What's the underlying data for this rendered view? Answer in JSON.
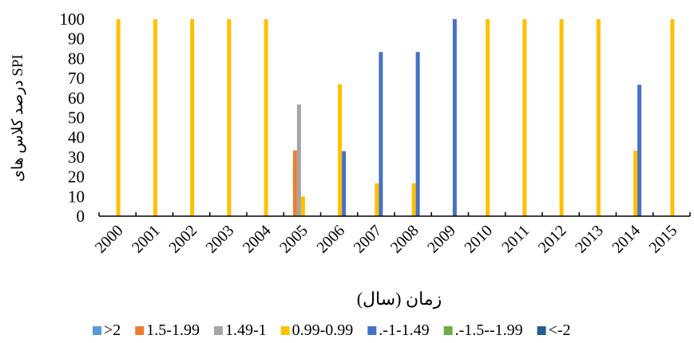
{
  "chart_data": {
    "type": "bar",
    "xlabel": "زمان (سال)",
    "ylabel": "درصد کلاس های SPI",
    "ylim": [
      0,
      100
    ],
    "yticks": [
      0,
      10,
      20,
      30,
      40,
      50,
      60,
      70,
      80,
      90,
      100
    ],
    "grid": false,
    "legend_position": "bottom",
    "categories": [
      "2000",
      "2001",
      "2002",
      "2003",
      "2004",
      "2005",
      "2006",
      "2007",
      "2008",
      "2009",
      "2010",
      "2011",
      "2012",
      "2013",
      "2014",
      "2015"
    ],
    "series": [
      {
        "name": ">2",
        "color": "#5B9BD5",
        "values": [
          0,
          0,
          0,
          0,
          0,
          0,
          0,
          0,
          0,
          0,
          0,
          0,
          0,
          0,
          0,
          0
        ]
      },
      {
        "name": "1.5-1.99",
        "color": "#ED7D31",
        "values": [
          0,
          0,
          0,
          0,
          0,
          33.3,
          0,
          0,
          0,
          0,
          0,
          0,
          0,
          0,
          0,
          0
        ]
      },
      {
        "name": "1.49-1",
        "color": "#A5A5A5",
        "values": [
          0,
          0,
          0,
          0,
          0,
          56.7,
          0,
          0,
          0,
          0,
          0,
          0,
          0,
          0,
          0,
          0
        ]
      },
      {
        "name": "0.99-0.99",
        "color": "#FFC000",
        "values": [
          100,
          100,
          100,
          100,
          100,
          10,
          67,
          16.7,
          16.7,
          0,
          100,
          100,
          100,
          100,
          33.3,
          100
        ]
      },
      {
        "name": ".-1-1.49",
        "color": "#4472C4",
        "values": [
          0,
          0,
          0,
          0,
          0,
          0,
          33,
          83.3,
          83.3,
          100,
          0,
          0,
          0,
          0,
          66.7,
          0
        ]
      },
      {
        "name": ".-1.5--1.99",
        "color": "#70AD47",
        "values": [
          0,
          0,
          0,
          0,
          0,
          0,
          0,
          0,
          0,
          0,
          0,
          0,
          0,
          0,
          0,
          0
        ]
      },
      {
        "name": "<-2",
        "color": "#255E91",
        "values": [
          0,
          0,
          0,
          0,
          0,
          0,
          0,
          0,
          0,
          0,
          0,
          0,
          0,
          0,
          0,
          0
        ]
      }
    ]
  }
}
